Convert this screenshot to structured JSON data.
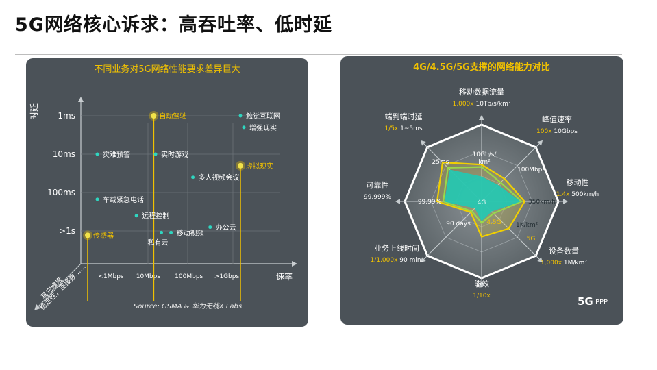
{
  "page": {
    "title": "5G网络核心诉求：高吞吐率、低时延"
  },
  "colors": {
    "accent_yellow": "#f2c200",
    "teal": "#2fc4b2",
    "panel": "#4b5258",
    "outer_ring": "#ffffff"
  },
  "chart_data": [
    {
      "type": "scatter",
      "title": "不同业务对5G网络性能要求差异巨大",
      "xlabel": "速率",
      "ylabel": "时延",
      "x_ticks": [
        "<1Mbps",
        "10Mbps",
        "100Mbps",
        ">1Gbps"
      ],
      "y_ticks": [
        "1ms",
        "10ms",
        "100ms",
        ">1s"
      ],
      "corner_label_1": "其它维度",
      "corner_label_2": "稳定性，连接数……",
      "source": "Source: GSMA & 华为无线X Labs",
      "points": [
        {
          "name": "自动驾驶",
          "x": 10,
          "y": 1,
          "highlight": true
        },
        {
          "name": "触觉互联网",
          "x": 1000,
          "y": 1,
          "highlight": false
        },
        {
          "name": "增强现实",
          "x": 1200,
          "y": 2,
          "highlight": false
        },
        {
          "name": "灾难预警",
          "x": 0.5,
          "y": 10,
          "highlight": false
        },
        {
          "name": "实时游戏",
          "x": 11,
          "y": 10,
          "highlight": false
        },
        {
          "name": "虚拟现实",
          "x": 1000,
          "y": 20,
          "highlight": true
        },
        {
          "name": "多人视频会议",
          "x": 80,
          "y": 40,
          "highlight": false
        },
        {
          "name": "车载紧急电话",
          "x": 0.5,
          "y": 150,
          "highlight": false
        },
        {
          "name": "远程控制",
          "x": 4,
          "y": 400,
          "highlight": false
        },
        {
          "name": "办公云",
          "x": 200,
          "y": 800,
          "highlight": false
        },
        {
          "name": "移动视频",
          "x": 25,
          "y": 1100,
          "highlight": false
        },
        {
          "name": "私有云",
          "x": 15,
          "y": 1100,
          "highlight": false,
          "label_below": true
        },
        {
          "name": "传感器",
          "x": 0.3,
          "y": 1300,
          "highlight": true
        }
      ]
    },
    {
      "type": "radar",
      "title": "4G/4.5G/5G支撑的网络能力对比",
      "axes": [
        {
          "name": "移动数据流量",
          "factor": "1,000x",
          "value": "10Tb/s/km²",
          "inner_value_1": "10Gb/s/",
          "inner_value_2": "km²"
        },
        {
          "name": "峰值速率",
          "factor": "100x",
          "value": "10Gbps",
          "inner_value_1": "100Mbps"
        },
        {
          "name": "移动性",
          "factor": "1.4x",
          "value": "500km/h",
          "inner_value_1": "350km/h"
        },
        {
          "name": "设备数量",
          "factor": "1,000x",
          "value": "1M/km²",
          "inner_value_1": "1K/km²"
        },
        {
          "name": "能效",
          "factor": "1/10x",
          "value": ""
        },
        {
          "name": "业务上线时间",
          "factor": "1/1,000x",
          "value": "90 min.",
          "inner_value_1": "90 days"
        },
        {
          "name": "可靠性",
          "factor": "",
          "value": "99.999%",
          "inner_value_1": "99.99%"
        },
        {
          "name": "端到端时延",
          "factor": "1/5x",
          "value": "1~5ms",
          "inner_value_1": "25ms"
        }
      ],
      "series": [
        {
          "name": "4G",
          "values": [
            0.32,
            0.3,
            0.5,
            0.18,
            0.25,
            0.12,
            0.48,
            0.58
          ]
        },
        {
          "name": "4.5G",
          "values": [
            0.45,
            0.35,
            0.52,
            0.22,
            0.28,
            0.18,
            0.5,
            0.62
          ]
        },
        {
          "name": "5G",
          "values": [
            0.48,
            0.42,
            0.56,
            0.5,
            0.46,
            0.2,
            0.58,
            0.72
          ]
        }
      ]
    }
  ],
  "logo": {
    "text": "PPP"
  }
}
